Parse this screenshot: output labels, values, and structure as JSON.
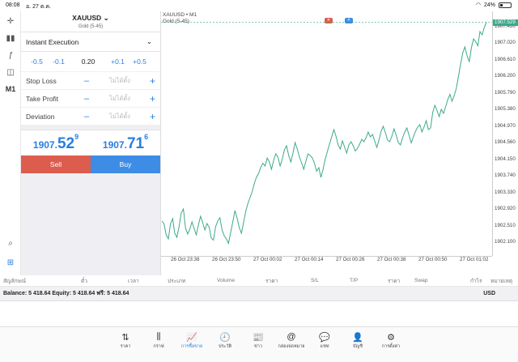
{
  "status": {
    "time": "08:08",
    "date": "อ. 27 ต.ค.",
    "battery": "24%",
    "battery_level": 0.24
  },
  "toolbar": {
    "icons": [
      "crosshair-icon",
      "candlestick-icon",
      "function-icon",
      "objects-icon"
    ],
    "timeframe": "M1"
  },
  "symbol": {
    "name": "XAUUSD",
    "chevron": "⌄",
    "description": "Gold (5-45)"
  },
  "order": {
    "execution": "Instant Execution",
    "volume": {
      "dec_big": "-0.5",
      "dec_small": "-0.1",
      "value": "0.20",
      "inc_small": "+0.1",
      "inc_big": "+0.5"
    },
    "stop_loss": {
      "label": "Stop Loss",
      "placeholder": "ไม่ได้ตั้ง"
    },
    "take_profit": {
      "label": "Take Profit",
      "placeholder": "ไม่ได้ตั้ง"
    },
    "deviation": {
      "label": "Deviation",
      "placeholder": "ไม่ได้ตั้ง"
    },
    "minus": "–",
    "plus": "+",
    "bid": {
      "main": "1907.",
      "big": "52",
      "sup": "9"
    },
    "ask": {
      "main": "1907.",
      "big": "71",
      "sup": "6"
    },
    "sell_label": "Sell",
    "buy_label": "Buy",
    "colors": {
      "sell": "#dc5c4e",
      "buy": "#3d8de6"
    }
  },
  "chart_data": {
    "type": "line",
    "title": "XAUUSD • M1",
    "subtitle": "Gold (5-45)",
    "y_ticks": [
      "1907.430",
      "1907.020",
      "1906.610",
      "1906.200",
      "1905.790",
      "1905.380",
      "1904.970",
      "1904.560",
      "1904.150",
      "1903.740",
      "1903.330",
      "1902.920",
      "1902.510",
      "1902.100"
    ],
    "current_price": "1907.529",
    "x_ticks": [
      "26 Oct 23:38",
      "26 Oct 23:50",
      "27 Oct 00:02",
      "27 Oct 00:14",
      "27 Oct 00:26",
      "27 Oct 00:38",
      "27 Oct 00:50",
      "27 Oct 01:02"
    ],
    "ylim": [
      1901.9,
      1907.6
    ],
    "values": [
      1902.62,
      1902.55,
      1902.28,
      1902.18,
      1902.55,
      1902.68,
      1902.32,
      1902.22,
      1902.48,
      1902.82,
      1902.92,
      1902.45,
      1902.3,
      1902.42,
      1902.6,
      1902.44,
      1902.28,
      1902.52,
      1902.74,
      1902.58,
      1902.4,
      1902.56,
      1902.47,
      1902.2,
      1902.15,
      1902.48,
      1902.62,
      1902.7,
      1902.4,
      1902.26,
      1902.18,
      1902.07,
      1902.34,
      1902.6,
      1902.88,
      1902.7,
      1902.46,
      1902.32,
      1902.58,
      1902.86,
      1903.05,
      1903.2,
      1903.34,
      1903.55,
      1903.7,
      1903.8,
      1903.95,
      1904.05,
      1903.98,
      1904.18,
      1904.08,
      1903.9,
      1904.12,
      1904.28,
      1904.2,
      1903.98,
      1904.15,
      1904.38,
      1904.48,
      1904.24,
      1904.08,
      1904.3,
      1904.56,
      1904.4,
      1904.2,
      1904.06,
      1903.9,
      1904.1,
      1904.28,
      1904.24,
      1904.18,
      1904.05,
      1903.85,
      1903.94,
      1903.7,
      1903.9,
      1904.15,
      1904.34,
      1904.52,
      1904.7,
      1904.88,
      1904.72,
      1904.5,
      1904.4,
      1904.6,
      1904.45,
      1904.3,
      1904.5,
      1904.58,
      1904.48,
      1904.35,
      1904.42,
      1904.52,
      1904.64,
      1904.58,
      1904.68,
      1904.82,
      1904.7,
      1904.76,
      1904.6,
      1904.44,
      1904.62,
      1904.84,
      1904.96,
      1904.8,
      1904.62,
      1904.58,
      1904.72,
      1904.9,
      1904.74,
      1904.56,
      1904.5,
      1904.68,
      1904.82,
      1904.92,
      1904.74,
      1904.55,
      1904.7,
      1904.84,
      1904.94,
      1905.0,
      1904.82,
      1904.95,
      1905.1,
      1904.88,
      1904.92,
      1905.3,
      1905.48,
      1905.35,
      1905.2,
      1905.38,
      1905.28,
      1905.44,
      1905.62,
      1905.75,
      1905.58,
      1905.72,
      1905.9,
      1906.2,
      1906.5,
      1906.78,
      1906.92,
      1906.7,
      1906.55,
      1906.9,
      1907.12,
      1907.05,
      1906.95,
      1907.3,
      1907.22,
      1907.4,
      1907.53
    ]
  },
  "trade_columns": [
    "สัญลักษณ์",
    "ตั๋ว",
    "เวลา",
    "ประเภท",
    "Volume",
    "ราคา",
    "S/L",
    "T/P",
    "ราคา",
    "Swap",
    "กำไร",
    "หมายเหตุ"
  ],
  "balance": {
    "text": "Balance: 5 418.64 Equity: 5 418.64 ฟรี: 5 418.64",
    "currency": "USD"
  },
  "tabs": [
    {
      "label": "ราคา",
      "icon": "⇅"
    },
    {
      "label": "กราฟ",
      "icon": "⫼"
    },
    {
      "label": "การซื้อขาย",
      "icon": "📈"
    },
    {
      "label": "ประวัติ",
      "icon": "🕘"
    },
    {
      "label": "ข่าว",
      "icon": "📰"
    },
    {
      "label": "กล่องจดหมาย",
      "icon": "@"
    },
    {
      "label": "แชท",
      "icon": "💬"
    },
    {
      "label": "บัญชี",
      "icon": "👤"
    },
    {
      "label": "การตั้งค่า",
      "icon": "⚙"
    }
  ]
}
